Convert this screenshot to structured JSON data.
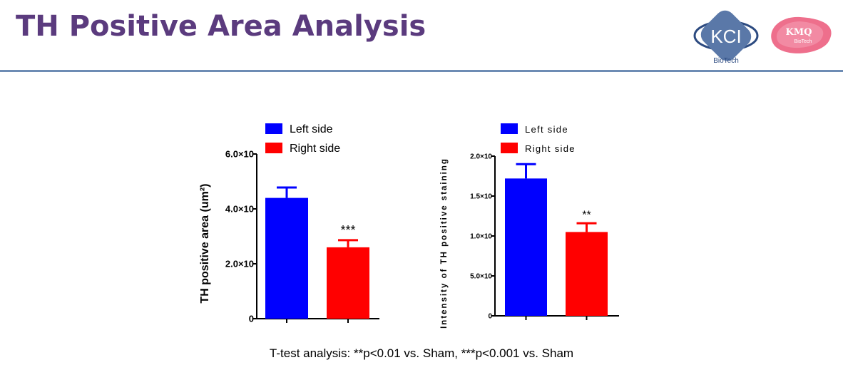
{
  "header": {
    "title": "TH Positive Area Analysis",
    "logos": [
      {
        "text": "KCI",
        "subtext": "BioTech",
        "color": "#2c4a80"
      },
      {
        "text": "KMQ",
        "subtext": "BioTech",
        "color": "#e8466b"
      }
    ]
  },
  "footnote": "T-test analysis: **p<0.01 vs. Sham, ***p<0.001 vs. Sham",
  "chart_data": [
    {
      "type": "bar",
      "categories": [
        "Left side",
        "Right side"
      ],
      "values": [
        4.4,
        2.6
      ],
      "errors": [
        0.38,
        0.26
      ],
      "colors": [
        "#0000ff",
        "#ff0000"
      ],
      "annotations": [
        "",
        "***"
      ],
      "ylabel": "TH positive area (um²)",
      "ylim": [
        0,
        6.0
      ],
      "ticks": [
        {
          "v": 0,
          "label": "0"
        },
        {
          "v": 2.0,
          "label": "2.0×10"
        },
        {
          "v": 4.0,
          "label": "4.0×10"
        },
        {
          "v": 6.0,
          "label": "6.0×10"
        }
      ],
      "legend": [
        {
          "name": "Left side",
          "color": "#0000ff"
        },
        {
          "name": "Right side",
          "color": "#ff0000"
        }
      ],
      "legend_position": "top"
    },
    {
      "type": "bar",
      "categories": [
        "Left side",
        "Right side"
      ],
      "values": [
        1.72,
        1.05
      ],
      "errors": [
        0.18,
        0.11
      ],
      "colors": [
        "#0000ff",
        "#ff0000"
      ],
      "annotations": [
        "",
        "**"
      ],
      "ylabel": "Intensity of TH positive staining",
      "ylim": [
        0,
        2.0
      ],
      "ticks": [
        {
          "v": 0,
          "label": "0"
        },
        {
          "v": 0.5,
          "label": "5.0×10"
        },
        {
          "v": 1.0,
          "label": "1.0×10"
        },
        {
          "v": 1.5,
          "label": "1.5×10"
        },
        {
          "v": 2.0,
          "label": "2.0×10"
        }
      ],
      "legend": [
        {
          "name": "Left side",
          "color": "#0000ff"
        },
        {
          "name": "Right side",
          "color": "#ff0000"
        }
      ],
      "legend_position": "top"
    }
  ]
}
